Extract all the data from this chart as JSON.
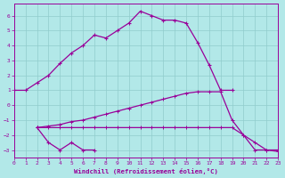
{
  "xlabel": "Windchill (Refroidissement éolien,°C)",
  "background_color": "#b2e8e8",
  "line_color": "#990099",
  "grid_color": "#90cccc",
  "xlim": [
    0,
    23
  ],
  "ylim": [
    -3.5,
    6.8
  ],
  "xticks": [
    0,
    1,
    2,
    3,
    4,
    5,
    6,
    7,
    8,
    9,
    10,
    11,
    12,
    13,
    14,
    15,
    16,
    17,
    18,
    19,
    20,
    21,
    22,
    23
  ],
  "yticks": [
    -3,
    -2,
    -1,
    0,
    1,
    2,
    3,
    4,
    5,
    6
  ],
  "line1": {
    "x": [
      0,
      1,
      2,
      3,
      4,
      5,
      6,
      7,
      8,
      9,
      10,
      11,
      12,
      13,
      14,
      15,
      16,
      17,
      18,
      19
    ],
    "y": [
      1.0,
      1.0,
      1.5,
      2.0,
      2.8,
      3.5,
      4.0,
      4.7,
      4.5,
      5.0,
      5.5,
      6.3,
      6.0,
      5.7,
      5.7,
      5.5,
      4.2,
      2.7,
      1.0,
      1.0
    ]
  },
  "line2": {
    "x": [
      2,
      3,
      4,
      5,
      6,
      7
    ],
    "y": [
      -1.5,
      -2.5,
      -3.0,
      -2.5,
      -3.0,
      -3.0
    ]
  },
  "line3": {
    "x": [
      2,
      3,
      4,
      5,
      6,
      7,
      8,
      9,
      10,
      11,
      12,
      13,
      14,
      15,
      16,
      17,
      18,
      19,
      20,
      21,
      22,
      23
    ],
    "y": [
      -1.5,
      -1.5,
      -1.5,
      -1.5,
      -1.5,
      -1.5,
      -1.5,
      -1.5,
      -1.5,
      -1.5,
      -1.5,
      -1.5,
      -1.5,
      -1.5,
      -1.5,
      -1.5,
      -1.5,
      -1.5,
      -2.0,
      -3.0,
      -3.0,
      -3.0
    ]
  },
  "line4": {
    "x": [
      2,
      3,
      4,
      5,
      6,
      7,
      8,
      9,
      10,
      11,
      12,
      13,
      14,
      15,
      16,
      17,
      18,
      19,
      20,
      21,
      22,
      23
    ],
    "y": [
      -1.5,
      -1.4,
      -1.3,
      -1.1,
      -1.0,
      -0.8,
      -0.6,
      -0.4,
      -0.2,
      0.0,
      0.2,
      0.4,
      0.6,
      0.8,
      0.9,
      0.9,
      0.9,
      -1.0,
      -2.0,
      -2.5,
      -3.0,
      -3.1
    ]
  }
}
